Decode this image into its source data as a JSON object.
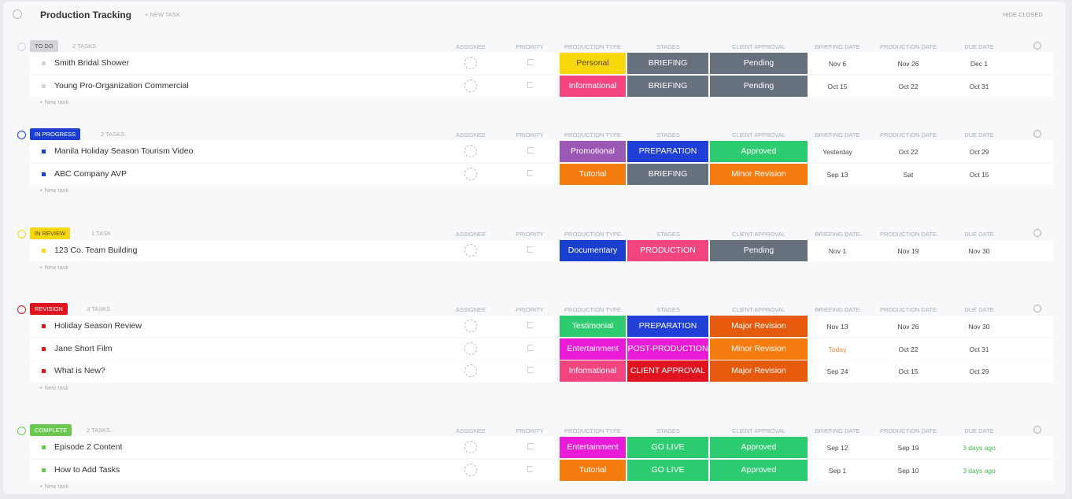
{
  "header": {
    "title": "Production Tracking",
    "new_task": "+ NEW TASK",
    "hide_closed": "HIDE CLOSED"
  },
  "columns": [
    "ASSIGNEE",
    "PRIORITY",
    "PRODUCTION TYPE",
    "STAGES",
    "CLIENT APPROVAL",
    "BRIEFING DATE",
    "PRODUCTION DATE",
    "DUE DATE"
  ],
  "new_task": "+ New task",
  "groups": [
    {
      "status": "TO DO",
      "count": "2 TASKS",
      "color": "#d3d5d9",
      "text_color": "#555",
      "tasks": [
        {
          "name": "Smith Bridal Shower",
          "type": {
            "text": "Personal",
            "color": "#f7d80c",
            "text_color": "#5a4a00"
          },
          "stage": {
            "text": "BRIEFING",
            "color": "#66717d"
          },
          "approval": {
            "text": "Pending",
            "color": "#66717d"
          },
          "briefing": "Nov 6",
          "production": "Nov 26",
          "due": "Dec 1"
        },
        {
          "name": "Young Pro-Organization Commercial",
          "type": {
            "text": "Informational",
            "color": "#f2457f"
          },
          "stage": {
            "text": "BRIEFING",
            "color": "#66717d"
          },
          "approval": {
            "text": "Pending",
            "color": "#66717d"
          },
          "briefing": "Oct 15",
          "production": "Oct 22",
          "due": "Oct 31"
        }
      ]
    },
    {
      "status": "IN PROGRESS",
      "count": "2 TASKS",
      "color": "#1c3fd0",
      "text_color": "#fff",
      "tasks": [
        {
          "name": "Manila Holiday Season Tourism Video",
          "type": {
            "text": "Promotional",
            "color": "#9b59b6"
          },
          "stage": {
            "text": "PREPARATION",
            "color": "#1f3fd6"
          },
          "approval": {
            "text": "Approved",
            "color": "#2ecc71"
          },
          "briefing": "Yesterday",
          "production": "Oct 22",
          "due": "Oct 29"
        },
        {
          "name": "ABC Company AVP",
          "type": {
            "text": "Tutorial",
            "color": "#f57c0f"
          },
          "stage": {
            "text": "BRIEFING",
            "color": "#66717d"
          },
          "approval": {
            "text": "Minor Revision",
            "color": "#f57c0f"
          },
          "briefing": "Sep 13",
          "production": "Sat",
          "due": "Oct 15"
        }
      ]
    },
    {
      "status": "IN REVIEW",
      "count": "1 TASK",
      "color": "#f7d80c",
      "text_color": "#5a4a00",
      "tasks": [
        {
          "name": "123 Co. Team Building",
          "type": {
            "text": "Documentary",
            "color": "#1a3fcf"
          },
          "stage": {
            "text": "PRODUCTION",
            "color": "#f2457f"
          },
          "approval": {
            "text": "Pending",
            "color": "#66717d"
          },
          "briefing": "Nov 1",
          "production": "Nov 19",
          "due": "Nov 30"
        }
      ]
    },
    {
      "status": "REVISION",
      "count": "3 TASKS",
      "color": "#e0141e",
      "text_color": "#fff",
      "tasks": [
        {
          "name": "Holiday Season Review",
          "type": {
            "text": "Testimonial",
            "color": "#2ecc71"
          },
          "stage": {
            "text": "PREPARATION",
            "color": "#1f3fd6"
          },
          "approval": {
            "text": "Major Revision",
            "color": "#e65a0e"
          },
          "briefing": "Nov 13",
          "production": "Nov 26",
          "due": "Nov 30"
        },
        {
          "name": "Jane Short Film",
          "type": {
            "text": "Entertainment",
            "color": "#e81cd6"
          },
          "stage": {
            "text": "POST-PRODUCTION",
            "color": "#e81cd6"
          },
          "approval": {
            "text": "Minor Revision",
            "color": "#f57c0f"
          },
          "briefing": {
            "text": "Today",
            "color": "#e8852d"
          },
          "production": "Oct 22",
          "due": "Oct 31"
        },
        {
          "name": "What is New?",
          "type": {
            "text": "Informational",
            "color": "#f2457f"
          },
          "stage": {
            "text": "CLIENT APPROVAL",
            "color": "#e0141e"
          },
          "approval": {
            "text": "Major Revision",
            "color": "#e65a0e"
          },
          "briefing": "Sep 24",
          "production": "Oct 15",
          "due": "Oct 29"
        }
      ]
    },
    {
      "status": "COMPLETE",
      "count": "2 TASKS",
      "color": "#6bc950",
      "text_color": "#fff",
      "tasks": [
        {
          "name": "Episode 2 Content",
          "type": {
            "text": "Entertainment",
            "color": "#e81cd6"
          },
          "stage": {
            "text": "GO LIVE",
            "color": "#2ecc71"
          },
          "approval": {
            "text": "Approved",
            "color": "#2ecc71"
          },
          "briefing": "Sep 12",
          "production": "Sep 19",
          "due": {
            "text": "3 days ago",
            "color": "#3bb44a"
          }
        },
        {
          "name": "How to Add Tasks",
          "type": {
            "text": "Tutorial",
            "color": "#f57c0f"
          },
          "stage": {
            "text": "GO LIVE",
            "color": "#2ecc71"
          },
          "approval": {
            "text": "Approved",
            "color": "#2ecc71"
          },
          "briefing": "Sep 1",
          "production": "Sep 10",
          "due": {
            "text": "3 days ago",
            "color": "#3bb44a"
          }
        }
      ]
    }
  ]
}
